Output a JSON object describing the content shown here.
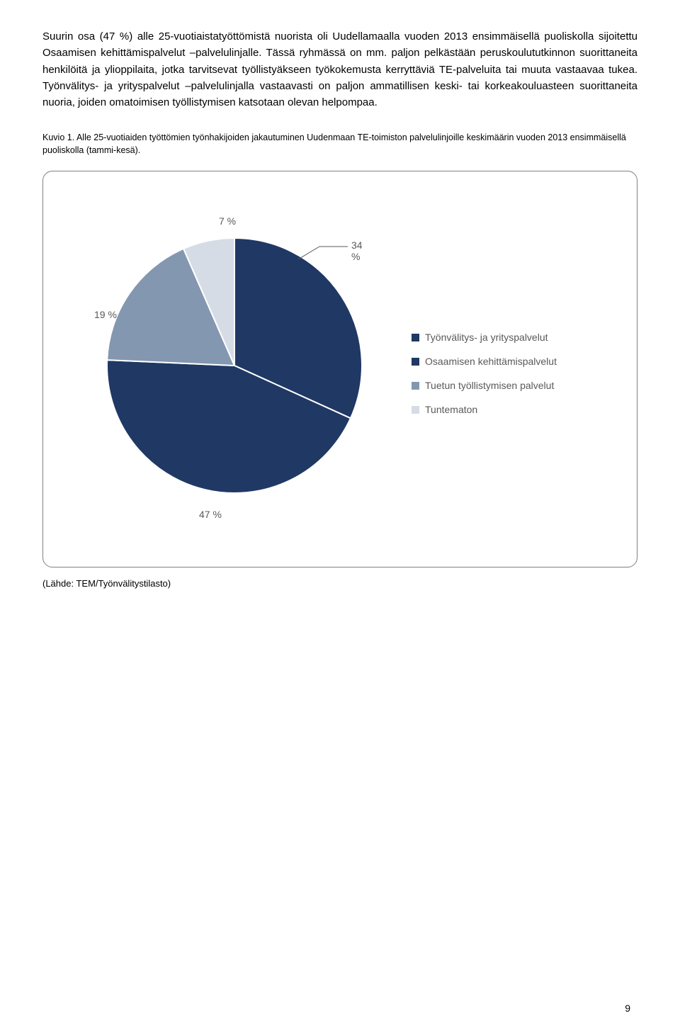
{
  "paragraph": "Suurin osa (47 %) alle 25-vuotiaistatyöttömistä nuorista oli Uudellamaalla vuoden 2013 ensimmäisellä puoliskolla sijoitettu Osaamisen kehittämispalvelut –palvelulinjalle. Tässä ryhmässä on mm. paljon pelkästään peruskoulututkinnon suorittaneita henkilöitä ja ylioppilaita, jotka tarvitsevat työllistyäkseen työkokemusta kerryttäviä TE-palveluita tai muuta vastaavaa tukea. Työnvälitys- ja yrityspalvelut –palvelulinjalla vastaavasti on paljon ammatillisen keski- tai korkeakouluasteen suorittaneita nuoria, joiden omatoimisen työllistymisen katsotaan olevan helpompaa.",
  "caption": "Kuvio 1. Alle 25-vuotiaiden työttömien työnhakijoiden jakautuminen Uudenmaan TE-toimiston palvelulinjoille keskimäärin vuoden 2013 ensimmäisellä puoliskolla (tammi-kesä).",
  "chart": {
    "type": "pie",
    "slices": [
      {
        "label": "Työnvälitys- ja yrityspalvelut",
        "value": 34,
        "display": "34 %",
        "color": "#1f3864"
      },
      {
        "label": "Osaamisen kehittämispalvelut",
        "value": 47,
        "display": "47 %",
        "color": "#203864"
      },
      {
        "label": "Tuetun työllistymisen palvelut",
        "value": 19,
        "display": "19 %",
        "color": "#8497b0"
      },
      {
        "label": "Tuntematon",
        "value": 7,
        "display": "7 %",
        "color": "#d6dce5"
      }
    ],
    "legend_colors": [
      "#1f3864",
      "#203864",
      "#8497b0",
      "#d6dce5"
    ],
    "label_fontsize": 14,
    "label_color": "#595959",
    "background_color": "#ffffff",
    "border_color": "#808080",
    "start_angle_deg": -90
  },
  "source": "(Lähde: TEM/Työnvälitystilasto)",
  "page_number": "9"
}
